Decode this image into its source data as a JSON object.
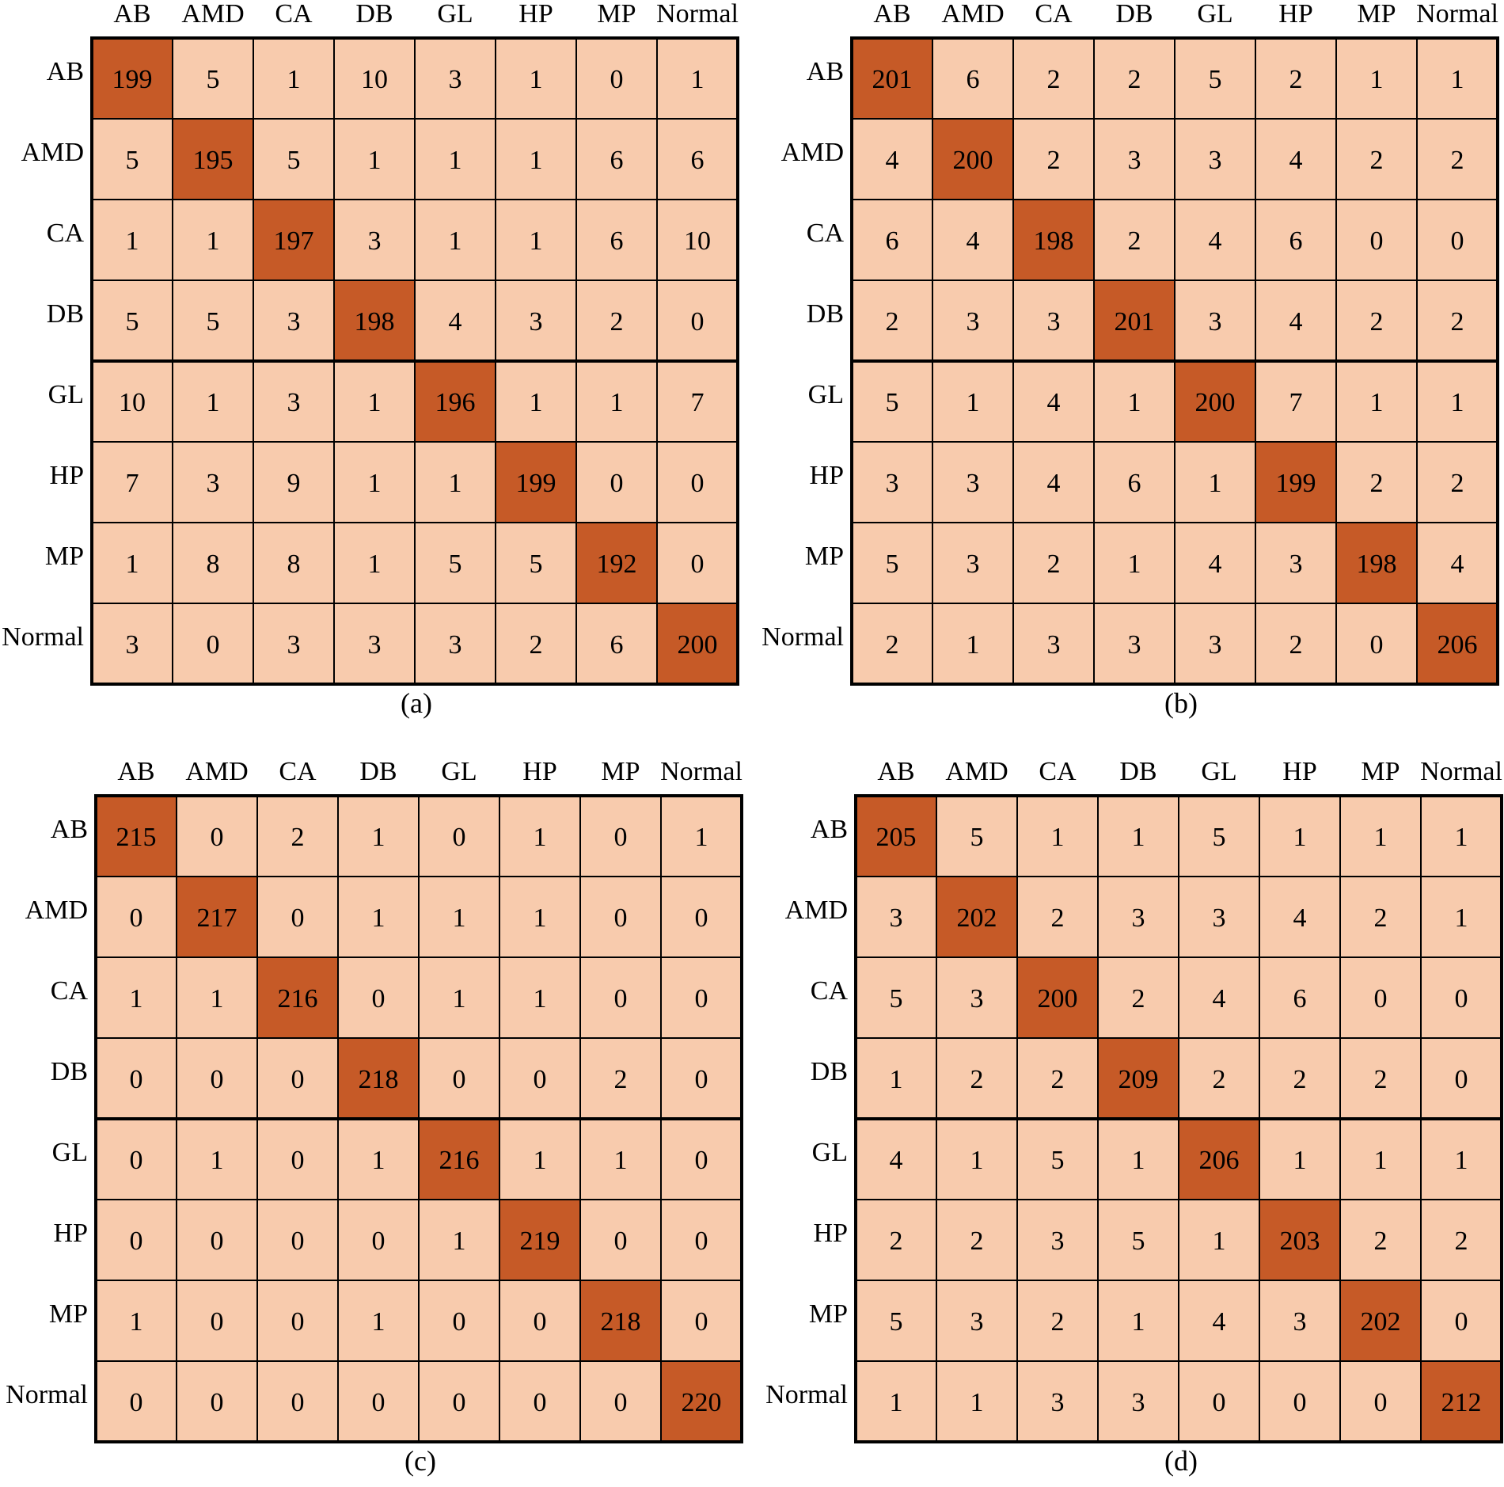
{
  "colors": {
    "diagonal": "#C65A27",
    "off_diagonal": "#F8CBAD",
    "border": "#000000"
  },
  "chart_data": [
    {
      "type": "heatmap",
      "caption": "(a)",
      "classes": [
        "AB",
        "AMD",
        "CA",
        "DB",
        "GL",
        "HP",
        "MP",
        "Normal"
      ],
      "matrix": [
        [
          199,
          5,
          1,
          10,
          3,
          1,
          0,
          1
        ],
        [
          5,
          195,
          5,
          1,
          1,
          1,
          6,
          6
        ],
        [
          1,
          1,
          197,
          3,
          1,
          1,
          6,
          10
        ],
        [
          5,
          5,
          3,
          198,
          4,
          3,
          2,
          0
        ],
        [
          10,
          1,
          3,
          1,
          196,
          1,
          1,
          7
        ],
        [
          7,
          3,
          9,
          1,
          1,
          199,
          0,
          0
        ],
        [
          1,
          8,
          8,
          1,
          5,
          5,
          192,
          0
        ],
        [
          3,
          0,
          3,
          3,
          3,
          2,
          6,
          200
        ]
      ]
    },
    {
      "type": "heatmap",
      "caption": "(b)",
      "classes": [
        "AB",
        "AMD",
        "CA",
        "DB",
        "GL",
        "HP",
        "MP",
        "Normal"
      ],
      "matrix": [
        [
          201,
          6,
          2,
          2,
          5,
          2,
          1,
          1
        ],
        [
          4,
          200,
          2,
          3,
          3,
          4,
          2,
          2
        ],
        [
          6,
          4,
          198,
          2,
          4,
          6,
          0,
          0
        ],
        [
          2,
          3,
          3,
          201,
          3,
          4,
          2,
          2
        ],
        [
          5,
          1,
          4,
          1,
          200,
          7,
          1,
          1
        ],
        [
          3,
          3,
          4,
          6,
          1,
          199,
          2,
          2
        ],
        [
          5,
          3,
          2,
          1,
          4,
          3,
          198,
          4
        ],
        [
          2,
          1,
          3,
          3,
          3,
          2,
          0,
          206
        ]
      ]
    },
    {
      "type": "heatmap",
      "caption": "(c)",
      "classes": [
        "AB",
        "AMD",
        "CA",
        "DB",
        "GL",
        "HP",
        "MP",
        "Normal"
      ],
      "matrix": [
        [
          215,
          0,
          2,
          1,
          0,
          1,
          0,
          1
        ],
        [
          0,
          217,
          0,
          1,
          1,
          1,
          0,
          0
        ],
        [
          1,
          1,
          216,
          0,
          1,
          1,
          0,
          0
        ],
        [
          0,
          0,
          0,
          218,
          0,
          0,
          2,
          0
        ],
        [
          0,
          1,
          0,
          1,
          216,
          1,
          1,
          0
        ],
        [
          0,
          0,
          0,
          0,
          1,
          219,
          0,
          0
        ],
        [
          1,
          0,
          0,
          1,
          0,
          0,
          218,
          0
        ],
        [
          0,
          0,
          0,
          0,
          0,
          0,
          0,
          220
        ]
      ]
    },
    {
      "type": "heatmap",
      "caption": "(d)",
      "classes": [
        "AB",
        "AMD",
        "CA",
        "DB",
        "GL",
        "HP",
        "MP",
        "Normal"
      ],
      "matrix": [
        [
          205,
          5,
          1,
          1,
          5,
          1,
          1,
          1
        ],
        [
          3,
          202,
          2,
          3,
          3,
          4,
          2,
          1
        ],
        [
          5,
          3,
          200,
          2,
          4,
          6,
          0,
          0
        ],
        [
          1,
          2,
          2,
          209,
          2,
          2,
          2,
          0
        ],
        [
          4,
          1,
          5,
          1,
          206,
          1,
          1,
          1
        ],
        [
          2,
          2,
          3,
          5,
          1,
          203,
          2,
          2
        ],
        [
          5,
          3,
          2,
          1,
          4,
          3,
          202,
          0
        ],
        [
          1,
          1,
          3,
          3,
          0,
          0,
          0,
          212
        ]
      ]
    }
  ]
}
